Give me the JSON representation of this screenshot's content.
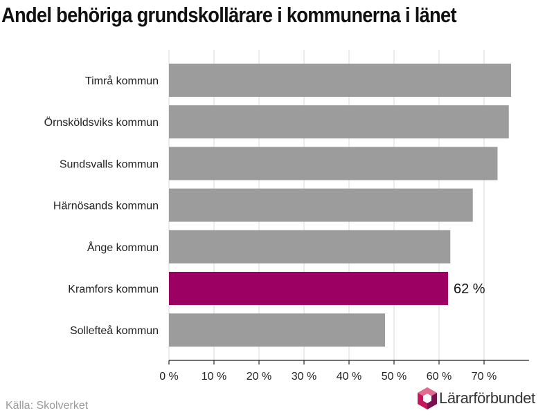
{
  "header": {
    "title": "Andel behöriga grundskollärare i kommunerna i länet"
  },
  "footer": {
    "source": "Källa: Skolverket",
    "brand": "Lärarförbundet"
  },
  "colors": {
    "bar": "#9c9c9c",
    "highlight": "#9b0062",
    "grid": "#d8d8d8",
    "axis": "#222222"
  },
  "chart_data": {
    "type": "bar",
    "orientation": "horizontal",
    "title": "Andel behöriga grundskollärare i kommunerna i länet",
    "categories": [
      "Timrå kommun",
      "Örnsköldsviks kommun",
      "Sundsvalls kommun",
      "Härnösands kommun",
      "Ånge kommun",
      "Kramfors kommun",
      "Sollefteå kommun"
    ],
    "values": [
      76,
      75.5,
      73,
      67.5,
      62.5,
      62,
      48
    ],
    "highlight_index": 5,
    "highlight_label": "62 %",
    "xlim": [
      0,
      80
    ],
    "xticks": [
      0,
      10,
      20,
      30,
      40,
      50,
      60,
      70
    ],
    "xtick_labels": [
      "0 %",
      "10 %",
      "20 %",
      "30 %",
      "40 %",
      "50 %",
      "60 %",
      "70 %"
    ],
    "grid": true,
    "legend": "none"
  }
}
